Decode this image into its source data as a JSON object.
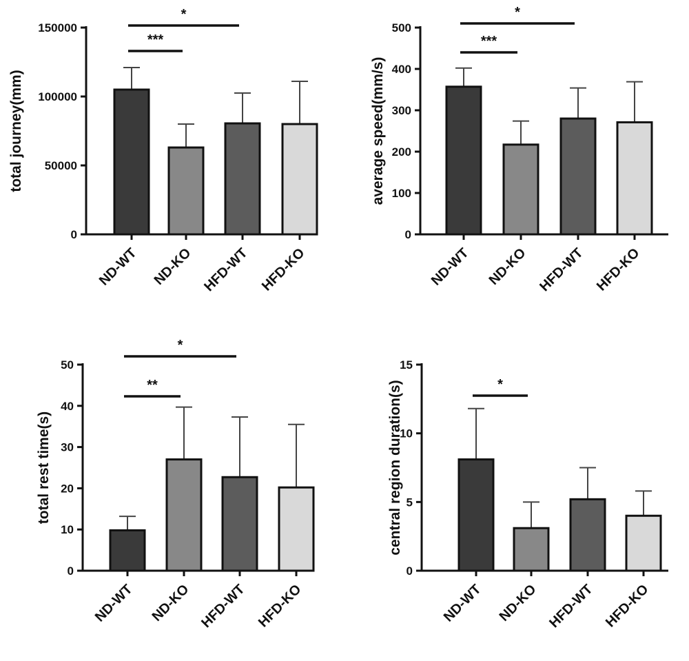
{
  "chart_data": [
    {
      "type": "bar",
      "ylabel": "total journey(mm)",
      "categories": [
        "ND-WT",
        "ND-KO",
        "HFD-WT",
        "HFD-KO"
      ],
      "values": [
        105000,
        63000,
        80500,
        80000
      ],
      "errors": [
        16000,
        17000,
        22000,
        31000
      ],
      "ylim": [
        0,
        150000
      ],
      "yticks": [
        0,
        50000,
        100000,
        150000
      ],
      "tick_labels": [
        "0",
        "50000",
        "100000",
        "150000"
      ],
      "bar_colors": [
        "#3a3a3a",
        "#888888",
        "#5c5c5c",
        "#d9d9d9"
      ],
      "significance": [
        {
          "from": 0,
          "to": 1,
          "label": "***"
        },
        {
          "from": 0,
          "to": 2,
          "label": "*"
        }
      ]
    },
    {
      "type": "bar",
      "ylabel": "average speed(mm/s)",
      "categories": [
        "ND-WT",
        "ND-KO",
        "HFD-WT",
        "HFD-KO"
      ],
      "values": [
        357,
        217,
        280,
        271
      ],
      "errors": [
        45,
        57,
        74,
        98
      ],
      "ylim": [
        0,
        500
      ],
      "yticks": [
        0,
        100,
        200,
        300,
        400,
        500
      ],
      "tick_labels": [
        "0",
        "100",
        "200",
        "300",
        "400",
        "500"
      ],
      "bar_colors": [
        "#3a3a3a",
        "#888888",
        "#5c5c5c",
        "#d9d9d9"
      ],
      "significance": [
        {
          "from": 0,
          "to": 1,
          "label": "***"
        },
        {
          "from": 0,
          "to": 2,
          "label": "*"
        }
      ]
    },
    {
      "type": "bar",
      "ylabel": "total rest time(s)",
      "categories": [
        "ND-WT",
        "ND-KO",
        "HFD-WT",
        "HFD-KO"
      ],
      "values": [
        9.8,
        27,
        22.7,
        20.2
      ],
      "errors": [
        3.4,
        12.7,
        14.6,
        15.3
      ],
      "ylim": [
        0,
        50
      ],
      "yticks": [
        0,
        10,
        20,
        30,
        40,
        50
      ],
      "tick_labels": [
        "0",
        "10",
        "20",
        "30",
        "40",
        "50"
      ],
      "bar_colors": [
        "#3a3a3a",
        "#888888",
        "#5c5c5c",
        "#d9d9d9"
      ],
      "significance": [
        {
          "from": 0,
          "to": 1,
          "label": "**"
        },
        {
          "from": 0,
          "to": 2,
          "label": "*"
        }
      ]
    },
    {
      "type": "bar",
      "ylabel": "central region duration(s)",
      "categories": [
        "ND-WT",
        "ND-KO",
        "HFD-WT",
        "HFD-KO"
      ],
      "values": [
        8.1,
        3.1,
        5.2,
        4.0
      ],
      "errors": [
        3.7,
        1.9,
        2.3,
        1.8
      ],
      "ylim": [
        0,
        15
      ],
      "yticks": [
        0,
        5,
        10,
        15
      ],
      "tick_labels": [
        "0",
        "5",
        "10",
        "15"
      ],
      "bar_colors": [
        "#3a3a3a",
        "#888888",
        "#5c5c5c",
        "#d9d9d9"
      ],
      "significance": [
        {
          "from": 0,
          "to": 1,
          "label": "*"
        }
      ]
    }
  ]
}
